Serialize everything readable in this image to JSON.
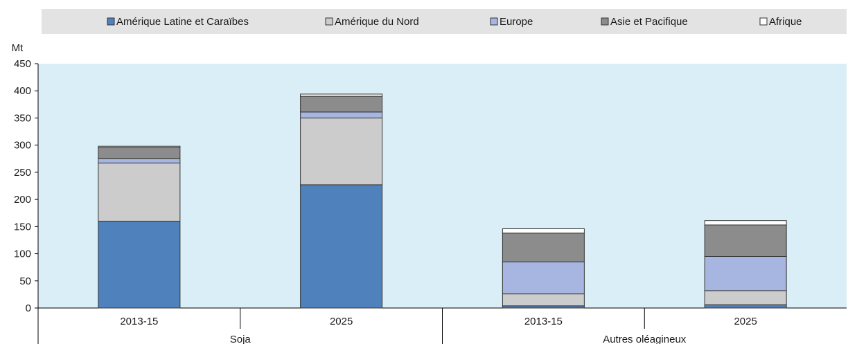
{
  "chart_data": {
    "type": "bar",
    "stacked": true,
    "ylabel": "Mt",
    "ylim": [
      0,
      450
    ],
    "yticks": [
      0,
      50,
      100,
      150,
      200,
      250,
      300,
      350,
      400,
      450
    ],
    "legend_position": "top",
    "categories": [
      "2013-15",
      "2025",
      "2013-15",
      "2025"
    ],
    "groups": [
      {
        "label": "Soja",
        "categories": [
          0,
          1
        ]
      },
      {
        "label": "Autres oléagineux",
        "categories": [
          2,
          3
        ]
      }
    ],
    "series": [
      {
        "name": "Amérique Latine et Caraïbes",
        "color": "#4f81bd",
        "values": [
          160,
          227,
          4,
          6
        ]
      },
      {
        "name": "Amérique du Nord",
        "color": "#cccccc",
        "values": [
          107,
          123,
          22,
          26
        ]
      },
      {
        "name": "Europe",
        "color": "#a6b6e1",
        "values": [
          8,
          11,
          59,
          63
        ]
      },
      {
        "name": "Asie et Pacifique",
        "color": "#8c8c8c",
        "values": [
          21,
          29,
          53,
          58
        ]
      },
      {
        "name": "Afrique",
        "color": "#ffffff",
        "values": [
          2,
          4,
          8,
          8
        ]
      }
    ],
    "legend_band_color": "#e3e3e3",
    "plot_background": "#d9eef7"
  }
}
